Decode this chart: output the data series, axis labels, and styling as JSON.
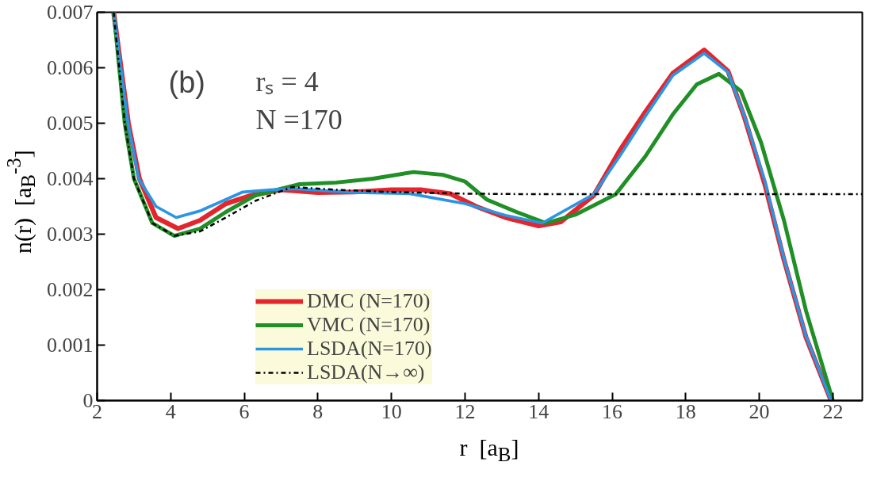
{
  "chart_data": {
    "type": "line",
    "xlabel": "r  [a$_{B}$]",
    "ylabel": "n(r)  [a$_{B}$$^{-3}$]",
    "annotations": [
      "(b)",
      "rₛ = 4",
      "N =170"
    ],
    "xlim": [
      2,
      22.8
    ],
    "xticks": [
      2,
      4,
      6,
      8,
      10,
      12,
      14,
      16,
      18,
      20,
      22
    ],
    "ylim": [
      0,
      0.007
    ],
    "yticks": [
      0,
      0.001,
      0.002,
      0.003,
      0.004,
      0.005,
      0.006,
      0.007
    ],
    "grid": false,
    "legend": "bottom left",
    "line_style": "solid",
    "marker": "none",
    "series": [
      {
        "name": "DMC (N=170)",
        "color": "#e3262e",
        "x": [
          2.45,
          2.85,
          3.15,
          3.6,
          4.2,
          4.8,
          5.5,
          6.2,
          7.0,
          8.0,
          9.0,
          10.0,
          10.8,
          11.6,
          12.3,
          13.1,
          14.0,
          14.6,
          15.5,
          16.2,
          16.9,
          17.65,
          18.5,
          19.15,
          19.6,
          20.15,
          20.67,
          21.27,
          21.95
        ],
        "values": [
          0.007,
          0.005,
          0.004,
          0.0033,
          0.0031,
          0.00325,
          0.00355,
          0.0037,
          0.0038,
          0.00375,
          0.00376,
          0.0038,
          0.0038,
          0.00373,
          0.0035,
          0.0033,
          0.00315,
          0.00322,
          0.0037,
          0.0045,
          0.0052,
          0.0059,
          0.00632,
          0.00594,
          0.0051,
          0.0039,
          0.00254,
          0.00114,
          0.0
        ]
      },
      {
        "name": "VMC (N=170)",
        "color": "#1f8f26",
        "x": [
          2.45,
          2.75,
          3.0,
          3.5,
          4.1,
          4.8,
          5.5,
          6.3,
          7.5,
          8.5,
          9.5,
          10.6,
          11.4,
          12.0,
          12.6,
          13.4,
          14.2,
          15.0,
          16.1,
          16.9,
          17.65,
          18.3,
          18.9,
          19.5,
          20.05,
          20.67,
          21.27,
          22.0
        ],
        "values": [
          0.007,
          0.005,
          0.004,
          0.0032,
          0.00297,
          0.0031,
          0.0034,
          0.0037,
          0.0039,
          0.00393,
          0.004,
          0.00412,
          0.00407,
          0.00395,
          0.00362,
          0.0034,
          0.0032,
          0.00335,
          0.00372,
          0.0044,
          0.00516,
          0.0057,
          0.00589,
          0.00558,
          0.00465,
          0.00325,
          0.00162,
          0.0
        ]
      },
      {
        "name": "LSDA(N=170)",
        "color": "#2b95e3",
        "x": [
          2.45,
          2.84,
          3.13,
          3.6,
          4.15,
          4.8,
          5.96,
          6.7,
          7.4,
          8.97,
          10.5,
          12.0,
          13.1,
          14.1,
          15.5,
          16.2,
          16.9,
          17.65,
          18.5,
          19.15,
          19.6,
          20.15,
          20.67,
          21.27,
          21.95
        ],
        "values": [
          0.007,
          0.005,
          0.004,
          0.0035,
          0.0033,
          0.00342,
          0.00376,
          0.0038,
          0.00382,
          0.00375,
          0.00373,
          0.00355,
          0.00334,
          0.0032,
          0.00372,
          0.0044,
          0.00512,
          0.00586,
          0.00626,
          0.00592,
          0.00512,
          0.00396,
          0.00256,
          0.00116,
          0.0
        ]
      },
      {
        "name": "LSDA(N→∞)",
        "color": "#000000",
        "line_style": "dashdot",
        "x": [
          2.45,
          2.75,
          3.0,
          3.5,
          4.1,
          4.8,
          5.5,
          6.3,
          7.3,
          8.5,
          10.0,
          12.0,
          14.0,
          16.0,
          18.0,
          20.0,
          22.8
        ],
        "values": [
          0.007,
          0.005,
          0.004,
          0.0032,
          0.00297,
          0.00305,
          0.0033,
          0.0036,
          0.00385,
          0.0038,
          0.00376,
          0.00373,
          0.00372,
          0.00372,
          0.00372,
          0.00372,
          0.00372
        ]
      }
    ]
  }
}
